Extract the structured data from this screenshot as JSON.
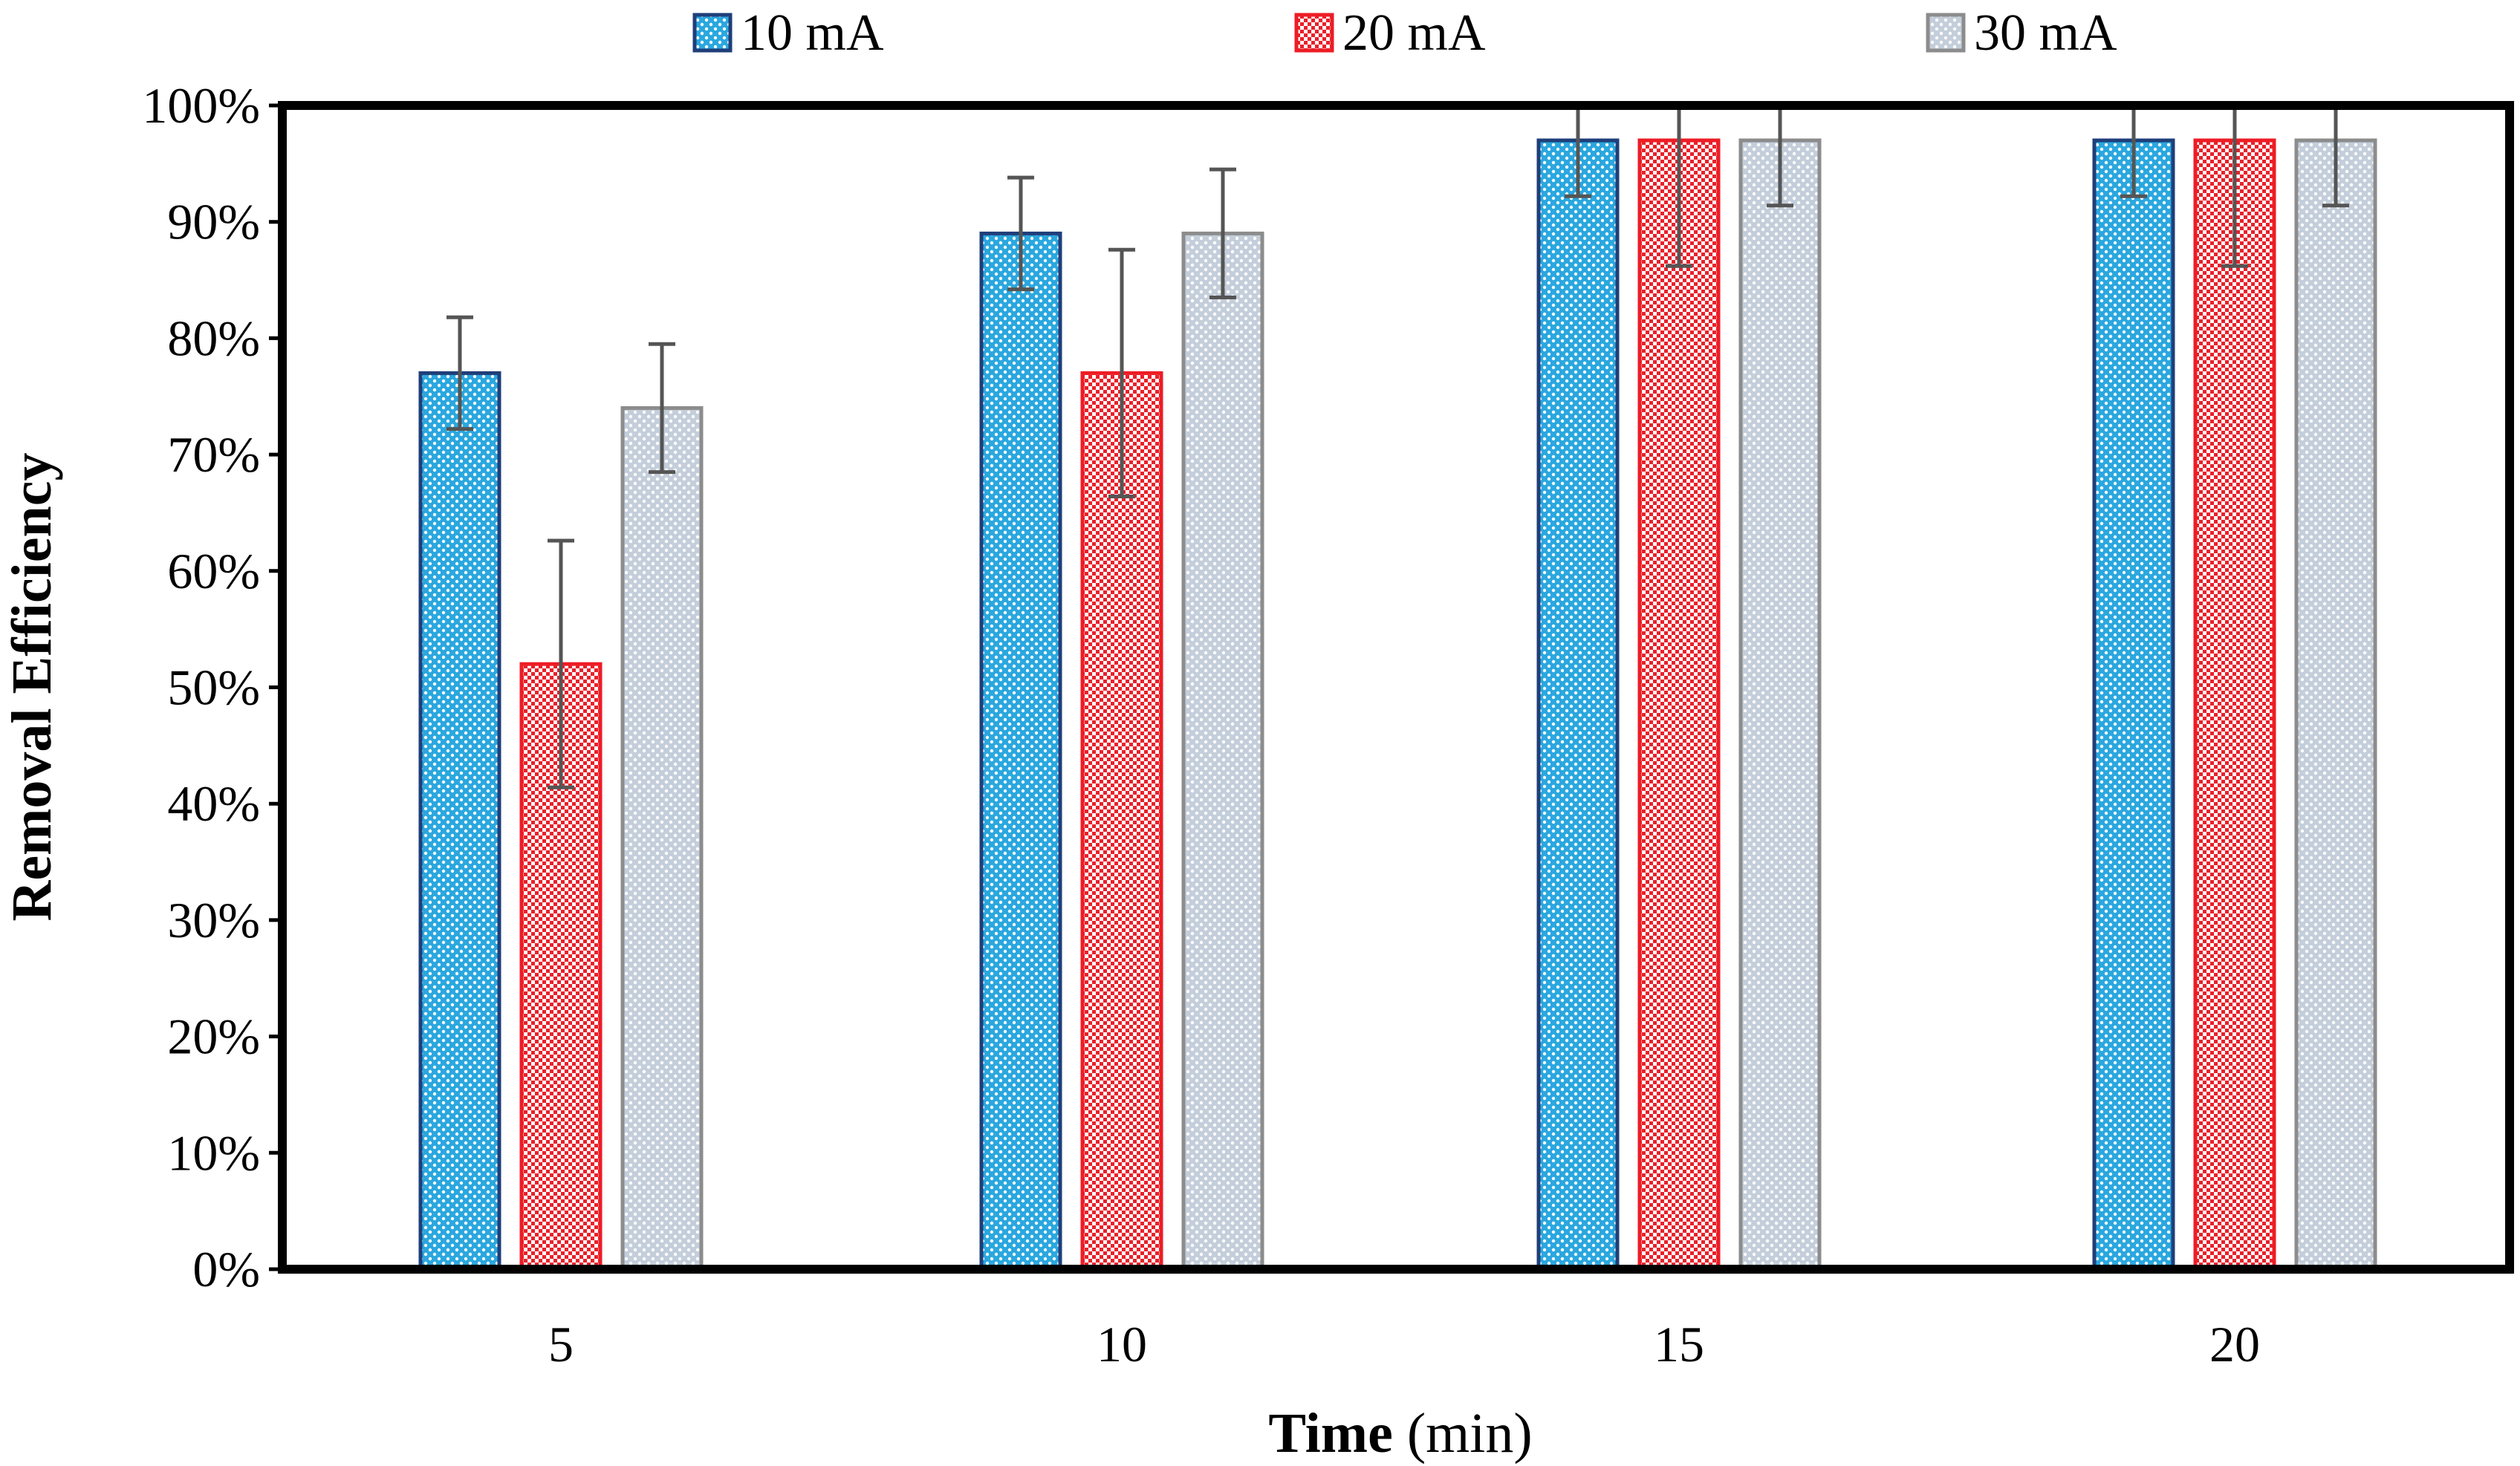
{
  "chart_data": {
    "type": "bar",
    "title": "",
    "xlabel_bold": "Time",
    "xlabel_unit": " (min)",
    "ylabel": "Removal Efficiency",
    "categories": [
      "5",
      "10",
      "15",
      "20"
    ],
    "ylim": [
      0,
      100
    ],
    "yticks": [
      "0%",
      "10%",
      "20%",
      "30%",
      "40%",
      "50%",
      "60%",
      "70%",
      "80%",
      "90%",
      "100%"
    ],
    "grid": false,
    "legend_position": "top",
    "series": [
      {
        "name": "10 mA",
        "values": [
          77,
          89,
          97,
          97
        ],
        "errors": [
          4.8,
          4.8,
          4.8,
          4.8
        ],
        "fill": "#29a8e0",
        "edge": "#1f3f7a"
      },
      {
        "name": "20 mA",
        "values": [
          52,
          77,
          97,
          97
        ],
        "errors": [
          10.6,
          10.6,
          10.8,
          10.8
        ],
        "fill": "#e8545b",
        "edge": "#ee1c25"
      },
      {
        "name": "30 mA",
        "values": [
          74,
          89,
          97,
          97
        ],
        "errors": [
          5.5,
          5.5,
          5.6,
          5.6
        ],
        "fill": "#c9d3e0",
        "edge": "#8c8c8c"
      }
    ]
  }
}
